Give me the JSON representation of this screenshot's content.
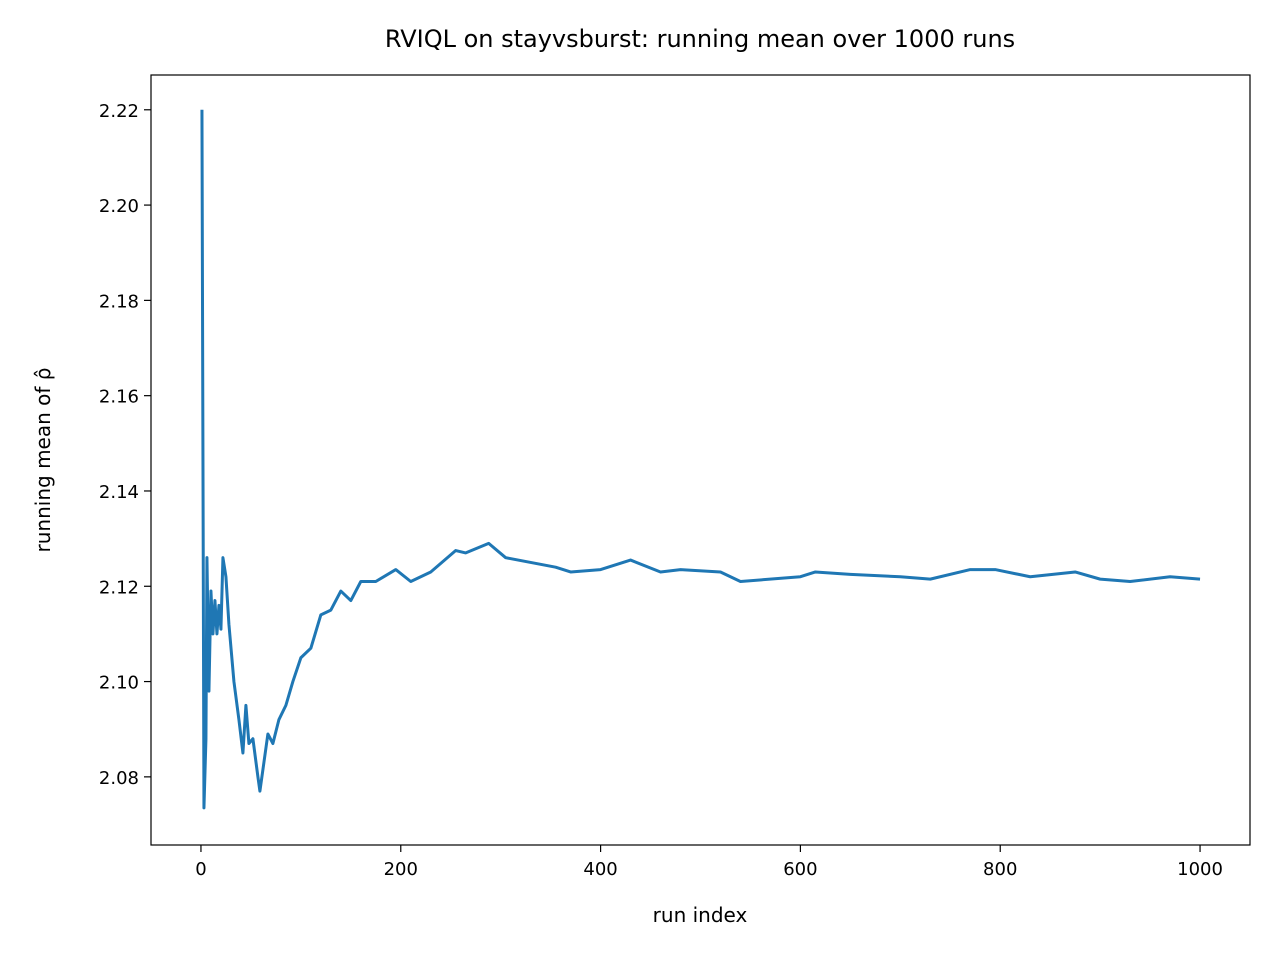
{
  "chart_data": {
    "type": "line",
    "title": "RVIQL on stayvsburst: running mean over 1000 runs",
    "x_label": "run index",
    "y_label": "running mean of ρ̂",
    "x": [
      1,
      3,
      5,
      6,
      8,
      10,
      12,
      14,
      16,
      18,
      20,
      22,
      25,
      28,
      33,
      38,
      42,
      45,
      48,
      52,
      57,
      59,
      63,
      67,
      72,
      78,
      85,
      92,
      100,
      110,
      120,
      130,
      140,
      150,
      160,
      175,
      195,
      210,
      230,
      255,
      265,
      288,
      305,
      330,
      355,
      370,
      400,
      430,
      460,
      480,
      520,
      540,
      600,
      615,
      650,
      700,
      730,
      770,
      795,
      830,
      875,
      900,
      930,
      970,
      1000
    ],
    "series": [
      {
        "name": "running mean",
        "color": "#1f77b4",
        "values": [
          2.22,
          2.0735,
          2.088,
          2.126,
          2.098,
          2.119,
          2.11,
          2.117,
          2.11,
          2.116,
          2.111,
          2.126,
          2.122,
          2.112,
          2.1,
          2.092,
          2.085,
          2.095,
          2.087,
          2.088,
          2.08,
          2.077,
          2.083,
          2.089,
          2.087,
          2.092,
          2.095,
          2.1,
          2.105,
          2.107,
          2.114,
          2.115,
          2.119,
          2.117,
          2.121,
          2.121,
          2.1235,
          2.121,
          2.123,
          2.1275,
          2.127,
          2.129,
          2.126,
          2.125,
          2.124,
          2.123,
          2.1235,
          2.1255,
          2.123,
          2.1235,
          2.123,
          2.121,
          2.122,
          2.123,
          2.1225,
          2.122,
          2.1215,
          2.1235,
          2.1235,
          2.122,
          2.123,
          2.1215,
          2.121,
          2.122,
          2.1215
        ]
      }
    ],
    "xlim": [
      -50,
      1050
    ],
    "ylim": [
      2.0657,
      2.2273
    ],
    "xticks": [
      0,
      200,
      400,
      600,
      800,
      1000
    ],
    "yticks": [
      2.08,
      {
        "value": 2.1,
        "label": "2.10"
      },
      2.12,
      2.14,
      2.16,
      2.18,
      {
        "value": 2.2,
        "label": "2.20"
      },
      2.22
    ]
  }
}
